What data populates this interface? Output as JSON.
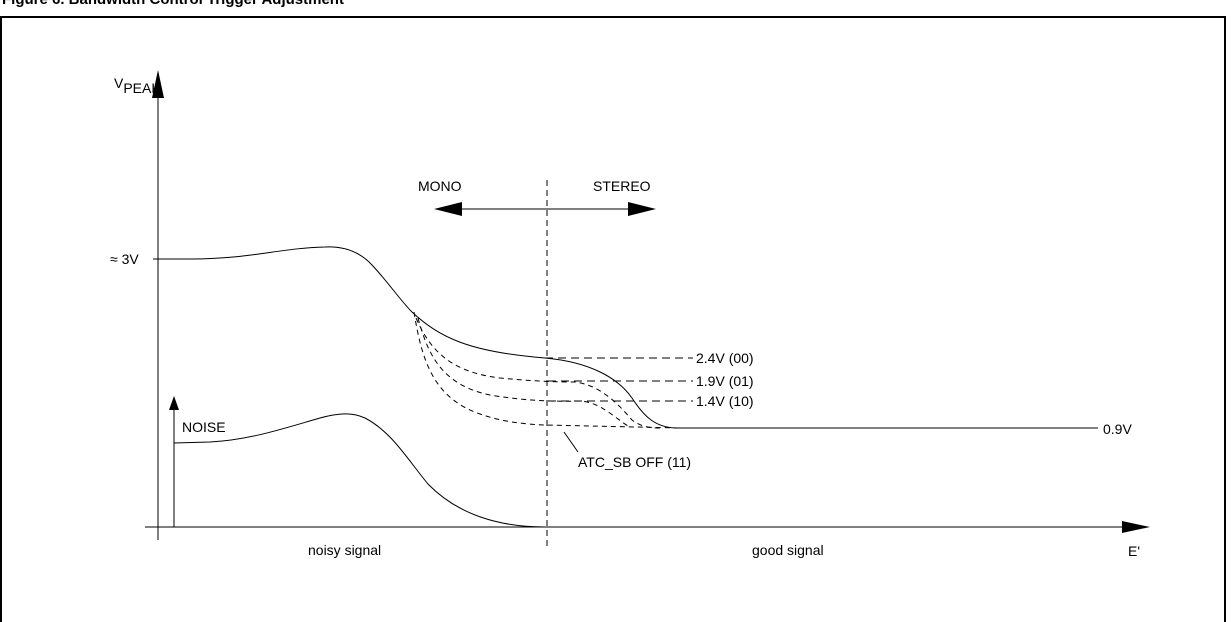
{
  "figure": {
    "caption": "Figure 6. Bandwidth Control Trigger Adjustment"
  },
  "diagram": {
    "y_axis_label": "V",
    "y_axis_label_sub": "PEAK",
    "x_axis_label": "E'",
    "level_3v_label": "≈ 3V",
    "noise_label": "NOISE",
    "mono_label": "MONO",
    "stereo_label": "STEREO",
    "threshold_00": "2.4V (00)",
    "threshold_01": "1.9V (01)",
    "threshold_10": "1.4V (10)",
    "atc_label": "ATC_SB OFF (11)",
    "floor_label": "0.9V",
    "noisy_signal_label": "noisy signal",
    "good_signal_label": "good signal"
  }
}
